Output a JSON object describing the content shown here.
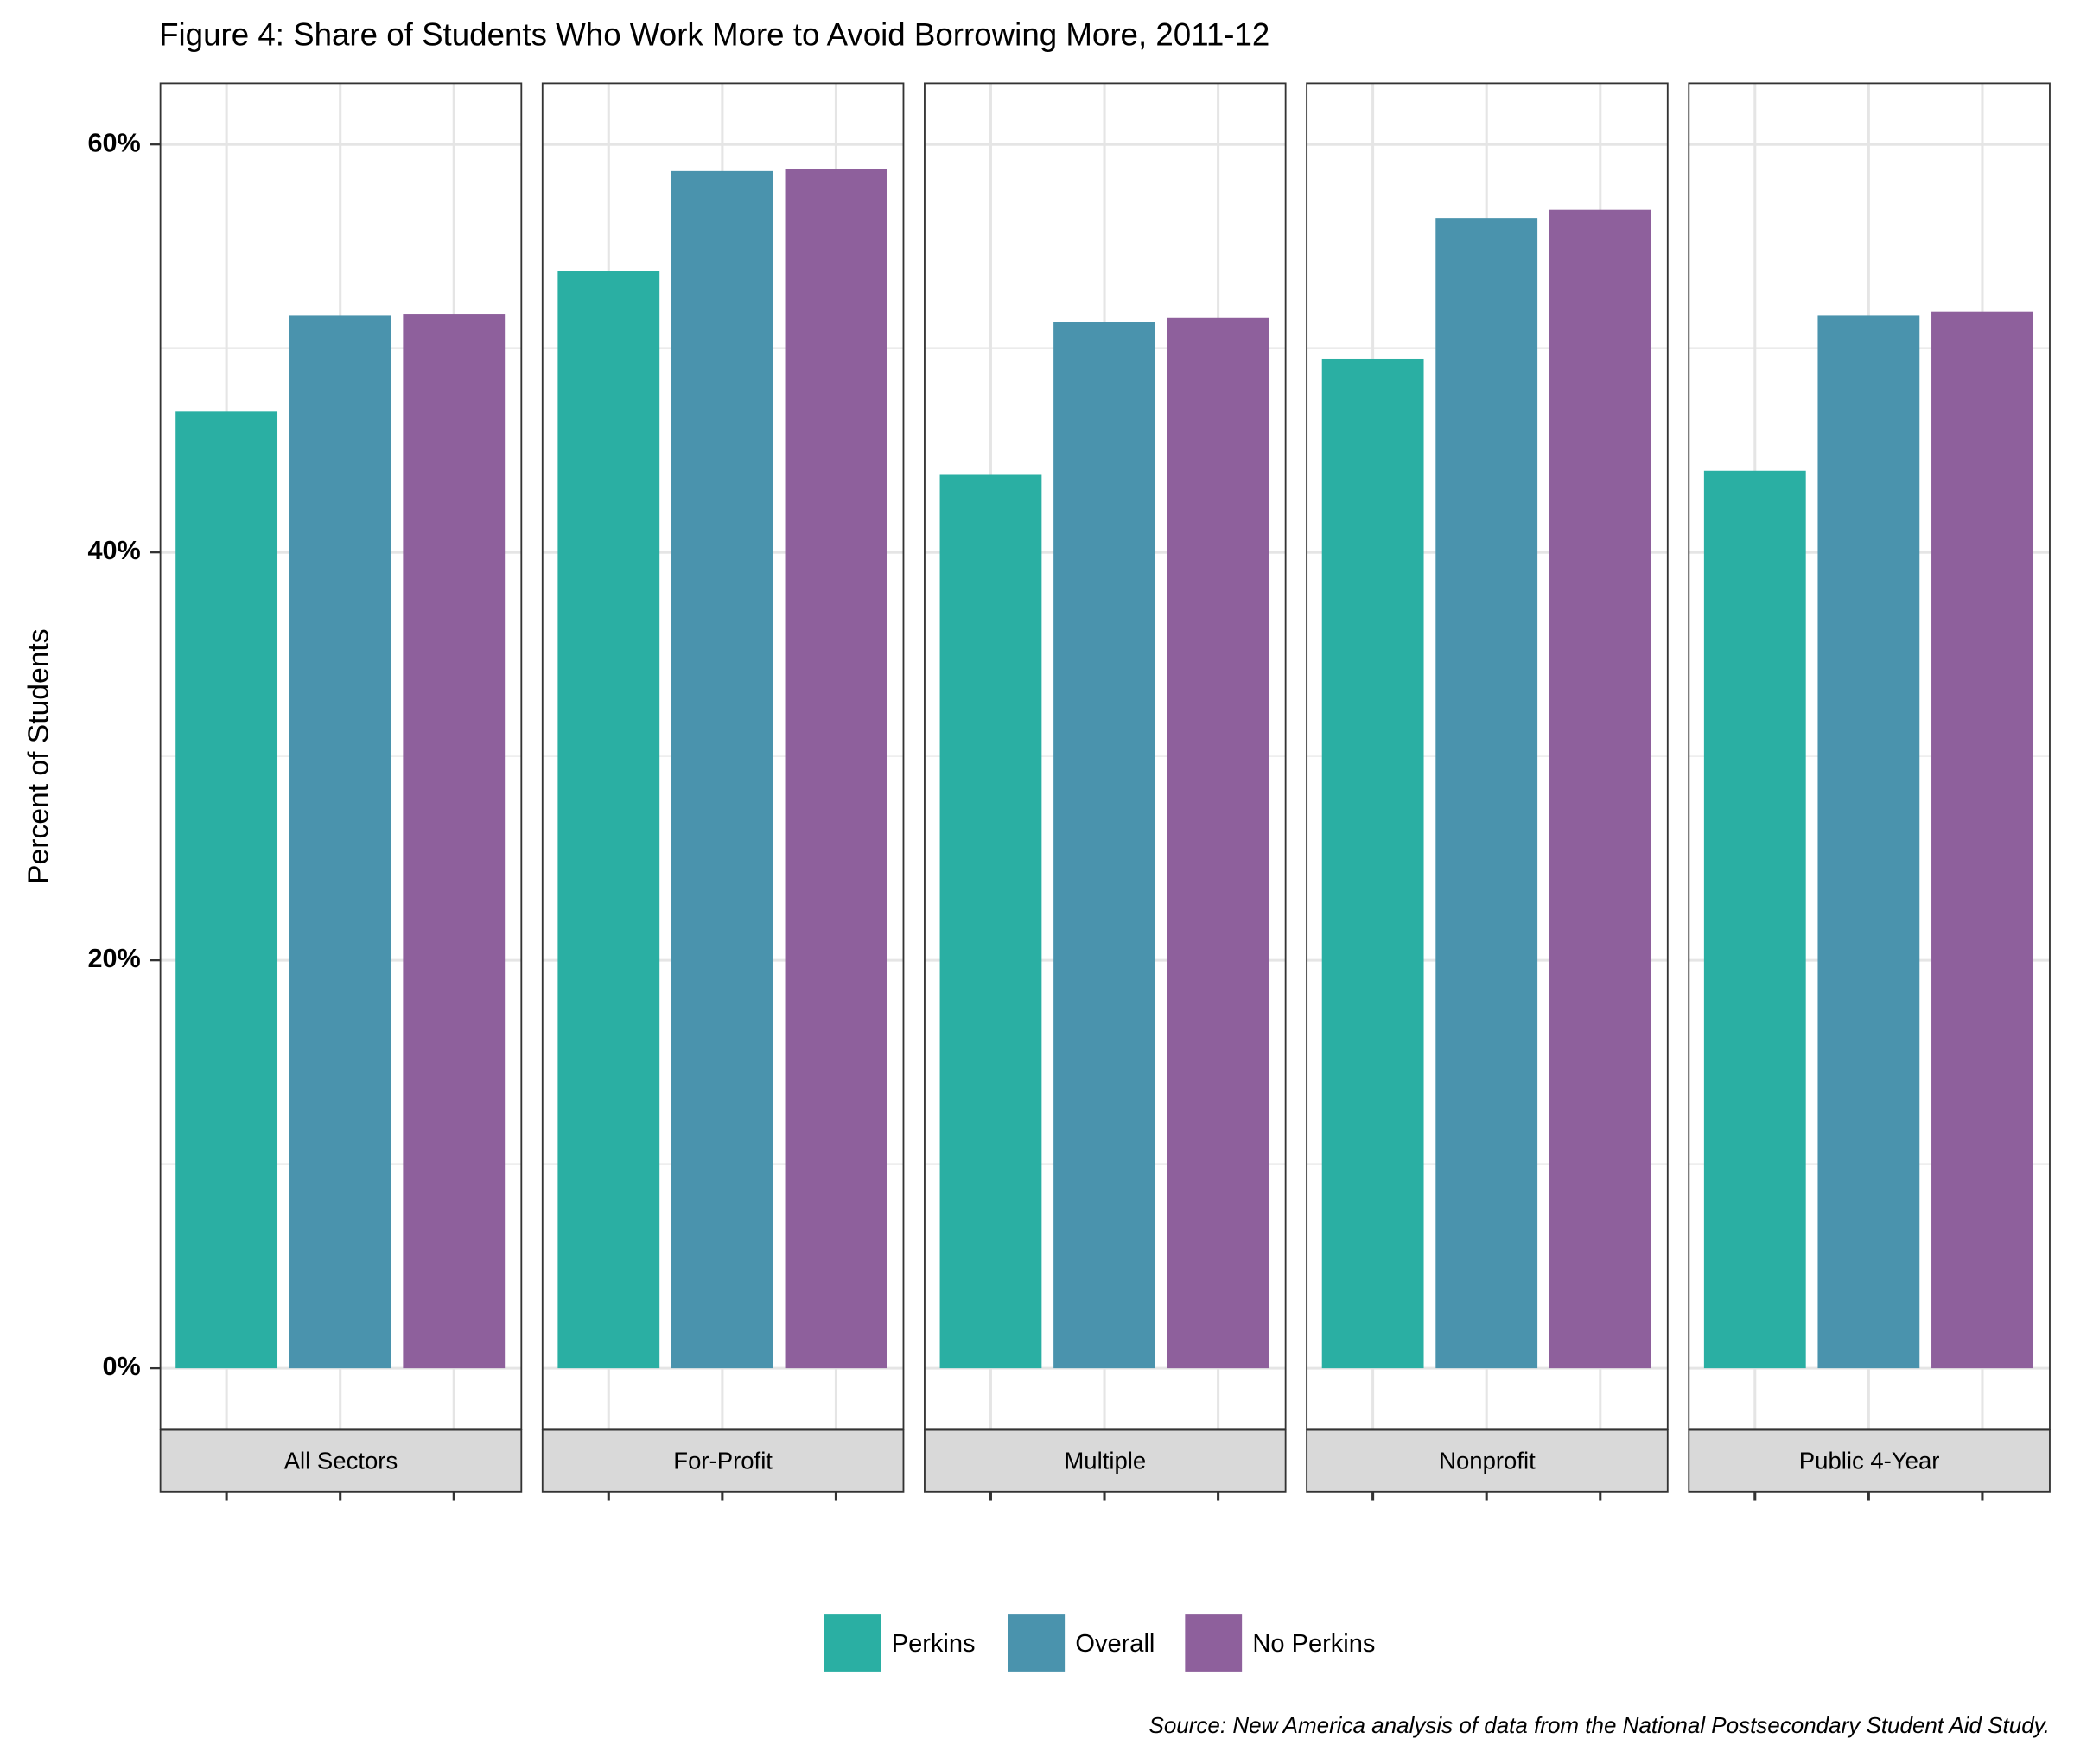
{
  "chart_data": {
    "type": "bar",
    "title": "Figure 4: Share of Students Who Work More to Avoid Borrowing More, 2011-12",
    "y_label": "Percent of Students",
    "source": "Source: New America analysis of data from the National Postsecondary Student Aid Study.",
    "facets": [
      "All Sectors",
      "For-Profit",
      "Multiple",
      "Nonprofit",
      "Public 4-Year"
    ],
    "series": [
      {
        "name": "Perkins",
        "color": "#2aafa3",
        "values": [
          46.9,
          53.8,
          43.8,
          49.5,
          44.0
        ]
      },
      {
        "name": "Overall",
        "color": "#4a93ad",
        "values": [
          51.6,
          58.7,
          51.3,
          56.4,
          51.6
        ]
      },
      {
        "name": "No Perkins",
        "color": "#8e609c",
        "values": [
          51.7,
          58.8,
          51.5,
          56.8,
          51.8
        ]
      }
    ],
    "ylim": [
      -3,
      63
    ],
    "yticks": [
      {
        "value": 0,
        "label": "0%"
      },
      {
        "value": 20,
        "label": "20%"
      },
      {
        "value": 40,
        "label": "40%"
      },
      {
        "value": 60,
        "label": "60%"
      }
    ],
    "minor_yticks": [
      10,
      30,
      50
    ],
    "grid": true,
    "legend": "bottom"
  }
}
